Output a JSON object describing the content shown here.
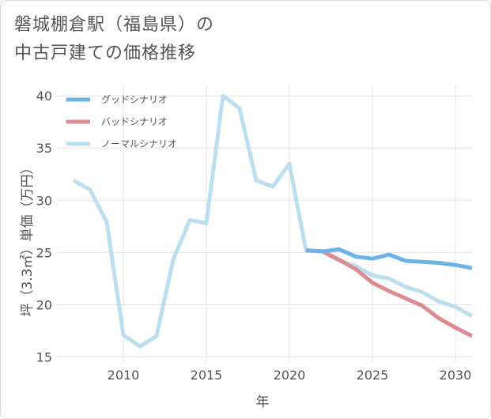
{
  "chart_data": {
    "type": "line",
    "title_lines": [
      "磐城棚倉駅（福島県）の",
      "中古戸建ての価格推移"
    ],
    "xlabel": "年",
    "ylabel": "坪（3.3㎡）単価（万円）",
    "xlim": [
      2006,
      2031
    ],
    "ylim": [
      14.5,
      41
    ],
    "x_ticks": [
      2010,
      2015,
      2020,
      2025,
      2030
    ],
    "y_ticks": [
      15,
      20,
      25,
      30,
      35,
      40
    ],
    "grid": true,
    "legend_position": "top-left",
    "series": [
      {
        "name": "グッドシナリオ",
        "color": "#6cb4e8",
        "x": [
          2021,
          2022,
          2023,
          2024,
          2025,
          2026,
          2027,
          2028,
          2029,
          2030,
          2031
        ],
        "y": [
          25.2,
          25.1,
          25.3,
          24.6,
          24.4,
          24.8,
          24.2,
          24.1,
          24.0,
          23.8,
          23.5
        ]
      },
      {
        "name": "バッドシナリオ",
        "color": "#dd8b93",
        "x": [
          2021,
          2022,
          2023,
          2024,
          2025,
          2026,
          2027,
          2028,
          2029,
          2030,
          2031
        ],
        "y": [
          25.2,
          25.1,
          24.3,
          23.4,
          22.1,
          21.3,
          20.6,
          19.9,
          18.7,
          17.8,
          17.0
        ]
      },
      {
        "name": "ノーマルシナリオ",
        "color": "#bcdff0",
        "x": [
          2007,
          2008,
          2009,
          2010,
          2011,
          2012,
          2013,
          2014,
          2015,
          2016,
          2017,
          2018,
          2019,
          2020,
          2021,
          2022,
          2023,
          2024,
          2025,
          2026,
          2027,
          2028,
          2029,
          2030,
          2031
        ],
        "y": [
          31.9,
          31.0,
          27.9,
          17.1,
          16.0,
          17.0,
          24.3,
          28.1,
          27.8,
          40.0,
          38.8,
          31.9,
          31.3,
          33.5,
          25.2,
          25.1,
          24.2,
          23.7,
          22.8,
          22.5,
          21.7,
          21.2,
          20.3,
          19.8,
          18.9
        ]
      }
    ]
  }
}
